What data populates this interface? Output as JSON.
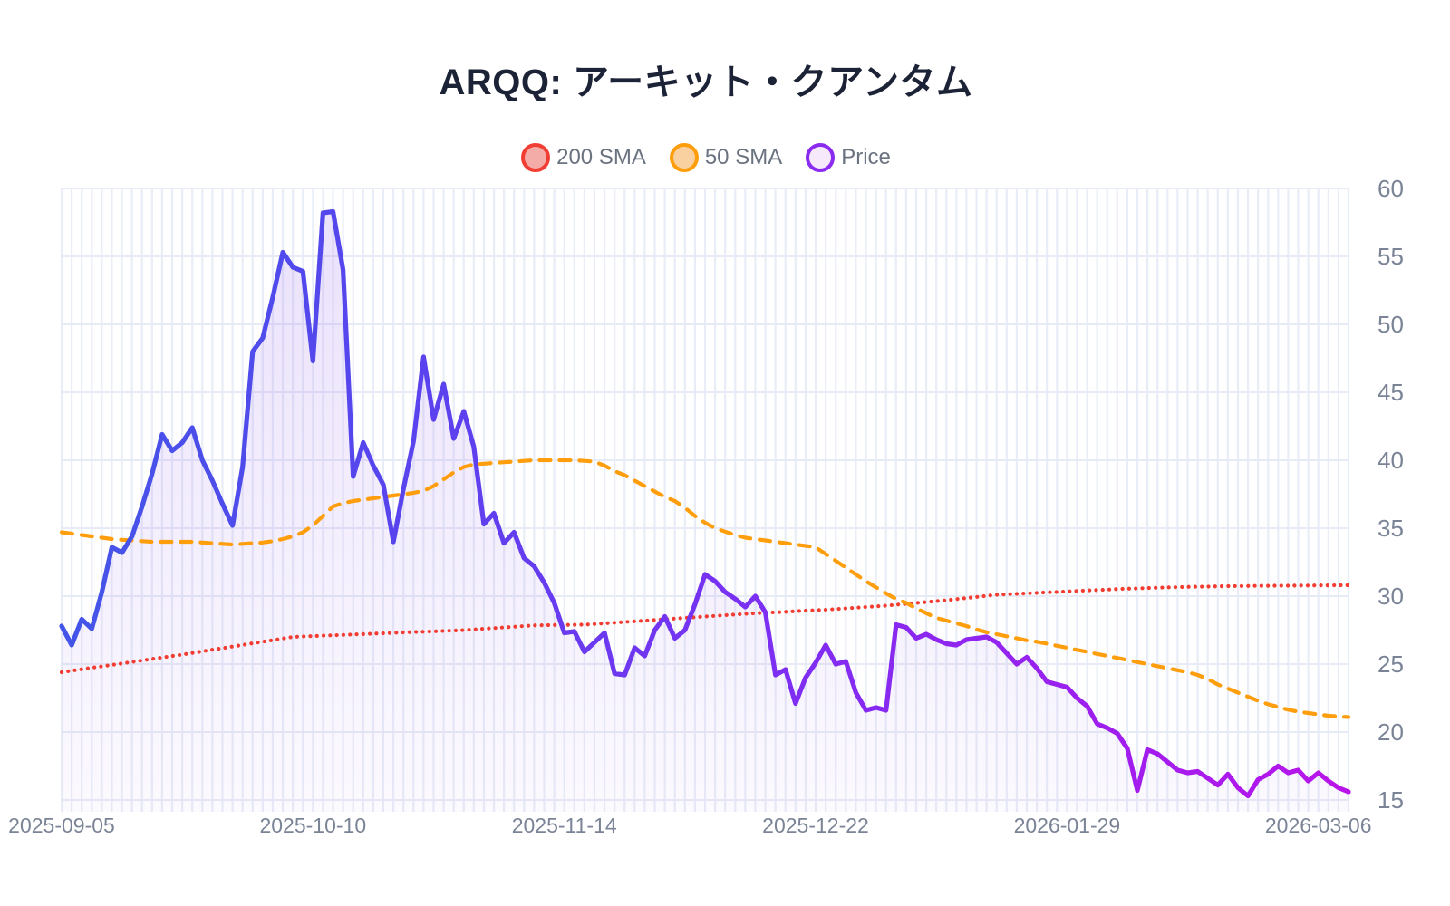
{
  "title": "ARQQ: アーキット・クアンタム",
  "legend": [
    {
      "label": "200 SMA",
      "stroke": "#f23d32",
      "fill": "#f3aca7"
    },
    {
      "label": "50 SMA",
      "stroke": "#ff9e0d",
      "fill": "#f9d0a0"
    },
    {
      "label": "Price",
      "stroke": "#8b2bf0",
      "fill": "#f6e9fc"
    }
  ],
  "colors": {
    "grid_vertical": "#e9edf7",
    "grid_horizontal": "#e7ebf5",
    "axis_text": "#7b8496",
    "title_text": "#1c2336",
    "background": "#ffffff",
    "price_gradient": [
      "#4355e8",
      "#5a43ee",
      "#7c2ff2",
      "#9d1fee",
      "#b914ea"
    ],
    "area_fill_top": "rgba(139,86,234,0.18)",
    "area_fill_bottom": "rgba(139,86,234,0.03)"
  },
  "chart_data": {
    "type": "line",
    "title": "ARQQ: アーキット・クアンタム",
    "xlabel": "",
    "ylabel": "",
    "ylim": [
      15,
      60
    ],
    "y_ticks": [
      60,
      55,
      50,
      45,
      40,
      35,
      30,
      25,
      20,
      15
    ],
    "x_unit": "trading-day",
    "n_points": 129,
    "grid": true,
    "legend_position": "top-center",
    "x_tick_days": [
      0,
      25,
      50,
      75,
      100,
      125
    ],
    "x_tick_labels": [
      "2025-09-05",
      "2025-10-10",
      "2025-11-14",
      "2025-12-22",
      "2026-01-29",
      "2026-03-06"
    ],
    "series": [
      {
        "name": "Price",
        "style": "solid",
        "area_fill": true,
        "color": "gradient:#4355e8->#b914ea",
        "values": [
          27.8,
          26.4,
          28.3,
          27.6,
          30.3,
          33.6,
          33.2,
          34.4,
          36.6,
          39.0,
          41.9,
          40.7,
          41.3,
          42.4,
          40.0,
          38.5,
          36.8,
          35.2,
          39.5,
          48.0,
          49.0,
          52.0,
          55.3,
          54.2,
          53.9,
          47.3,
          58.2,
          58.3,
          54.0,
          38.8,
          41.3,
          39.6,
          38.2,
          34.0,
          37.9,
          41.4,
          47.6,
          43.0,
          45.6,
          41.6,
          43.6,
          41.0,
          35.3,
          36.1,
          33.9,
          34.7,
          32.8,
          32.2,
          31.0,
          29.5,
          27.3,
          27.4,
          25.9,
          26.6,
          27.3,
          24.3,
          24.2,
          26.2,
          25.6,
          27.5,
          28.5,
          26.9,
          27.5,
          29.4,
          31.6,
          31.1,
          30.3,
          29.8,
          29.2,
          30.0,
          28.8,
          24.2,
          24.6,
          22.1,
          24.0,
          25.1,
          26.4,
          25.0,
          25.2,
          22.9,
          21.6,
          21.8,
          21.6,
          27.9,
          27.7,
          26.9,
          27.2,
          26.8,
          26.5,
          26.4,
          26.8,
          26.9,
          27.0,
          26.6,
          25.8,
          25.0,
          25.5,
          24.7,
          23.7,
          23.5,
          23.3,
          22.5,
          21.9,
          20.6,
          20.3,
          19.9,
          18.8,
          15.7,
          18.7,
          18.4,
          17.8,
          17.2,
          17.0,
          17.1,
          16.6,
          16.1,
          16.9,
          15.9,
          15.3,
          16.5,
          16.9,
          17.5,
          17.0,
          17.2,
          16.4,
          17.0,
          16.4,
          15.9,
          15.6
        ]
      },
      {
        "name": "50 SMA",
        "style": "dashed",
        "color": "#ff9e0d",
        "values": [
          34.7,
          34.6,
          34.5,
          34.4,
          34.3,
          34.2,
          34.15,
          34.1,
          34.05,
          34.0,
          34.0,
          34.0,
          34.0,
          34.0,
          33.95,
          33.9,
          33.85,
          33.8,
          33.85,
          33.9,
          33.95,
          34.05,
          34.2,
          34.4,
          34.7,
          35.2,
          35.9,
          36.6,
          36.85,
          37.0,
          37.1,
          37.2,
          37.3,
          37.4,
          37.5,
          37.6,
          37.75,
          38.1,
          38.6,
          39.1,
          39.5,
          39.7,
          39.75,
          39.8,
          39.85,
          39.9,
          39.95,
          40.0,
          40.0,
          40.0,
          40.0,
          40.0,
          39.95,
          39.9,
          39.6,
          39.2,
          38.9,
          38.5,
          38.1,
          37.7,
          37.3,
          37.0,
          36.5,
          35.9,
          35.4,
          35.0,
          34.75,
          34.5,
          34.3,
          34.2,
          34.1,
          34.0,
          33.9,
          33.8,
          33.7,
          33.6,
          33.1,
          32.6,
          32.1,
          31.6,
          31.1,
          30.65,
          30.2,
          29.8,
          29.5,
          29.1,
          28.75,
          28.4,
          28.2,
          28.0,
          27.8,
          27.55,
          27.35,
          27.2,
          27.05,
          26.9,
          26.75,
          26.65,
          26.5,
          26.35,
          26.2,
          26.05,
          25.9,
          25.75,
          25.6,
          25.45,
          25.3,
          25.15,
          25.0,
          24.85,
          24.7,
          24.55,
          24.4,
          24.2,
          23.9,
          23.5,
          23.2,
          22.9,
          22.6,
          22.3,
          22.05,
          21.85,
          21.65,
          21.5,
          21.4,
          21.3,
          21.2,
          21.15,
          21.1
        ]
      },
      {
        "name": "200 SMA",
        "style": "dotted",
        "color": "#f23d32",
        "values": [
          24.4,
          24.51,
          24.62,
          24.73,
          24.83,
          24.94,
          25.05,
          25.16,
          25.27,
          25.38,
          25.48,
          25.59,
          25.7,
          25.82,
          25.94,
          26.06,
          26.17,
          26.29,
          26.41,
          26.53,
          26.65,
          26.76,
          26.88,
          27.0,
          27.03,
          27.06,
          27.09,
          27.12,
          27.15,
          27.18,
          27.21,
          27.24,
          27.27,
          27.3,
          27.33,
          27.36,
          27.38,
          27.41,
          27.44,
          27.47,
          27.5,
          27.55,
          27.6,
          27.65,
          27.7,
          27.75,
          27.8,
          27.85,
          27.86,
          27.87,
          27.88,
          27.89,
          27.9,
          27.95,
          28.0,
          28.05,
          28.1,
          28.15,
          28.2,
          28.25,
          28.3,
          28.35,
          28.4,
          28.45,
          28.5,
          28.55,
          28.6,
          28.65,
          28.7,
          28.74,
          28.78,
          28.81,
          28.85,
          28.89,
          28.93,
          28.96,
          29.0,
          29.05,
          29.1,
          29.15,
          29.2,
          29.25,
          29.3,
          29.37,
          29.43,
          29.5,
          29.57,
          29.63,
          29.7,
          29.78,
          29.86,
          29.94,
          30.02,
          30.1,
          30.14,
          30.17,
          30.21,
          30.24,
          30.28,
          30.31,
          30.35,
          30.38,
          30.42,
          30.45,
          30.48,
          30.52,
          30.55,
          30.57,
          30.59,
          30.62,
          30.64,
          30.66,
          30.68,
          30.69,
          30.7,
          30.72,
          30.73,
          30.74,
          30.75,
          30.76,
          30.76,
          30.77,
          30.77,
          30.78,
          30.78,
          30.79,
          30.79,
          30.8,
          30.8
        ]
      }
    ]
  }
}
